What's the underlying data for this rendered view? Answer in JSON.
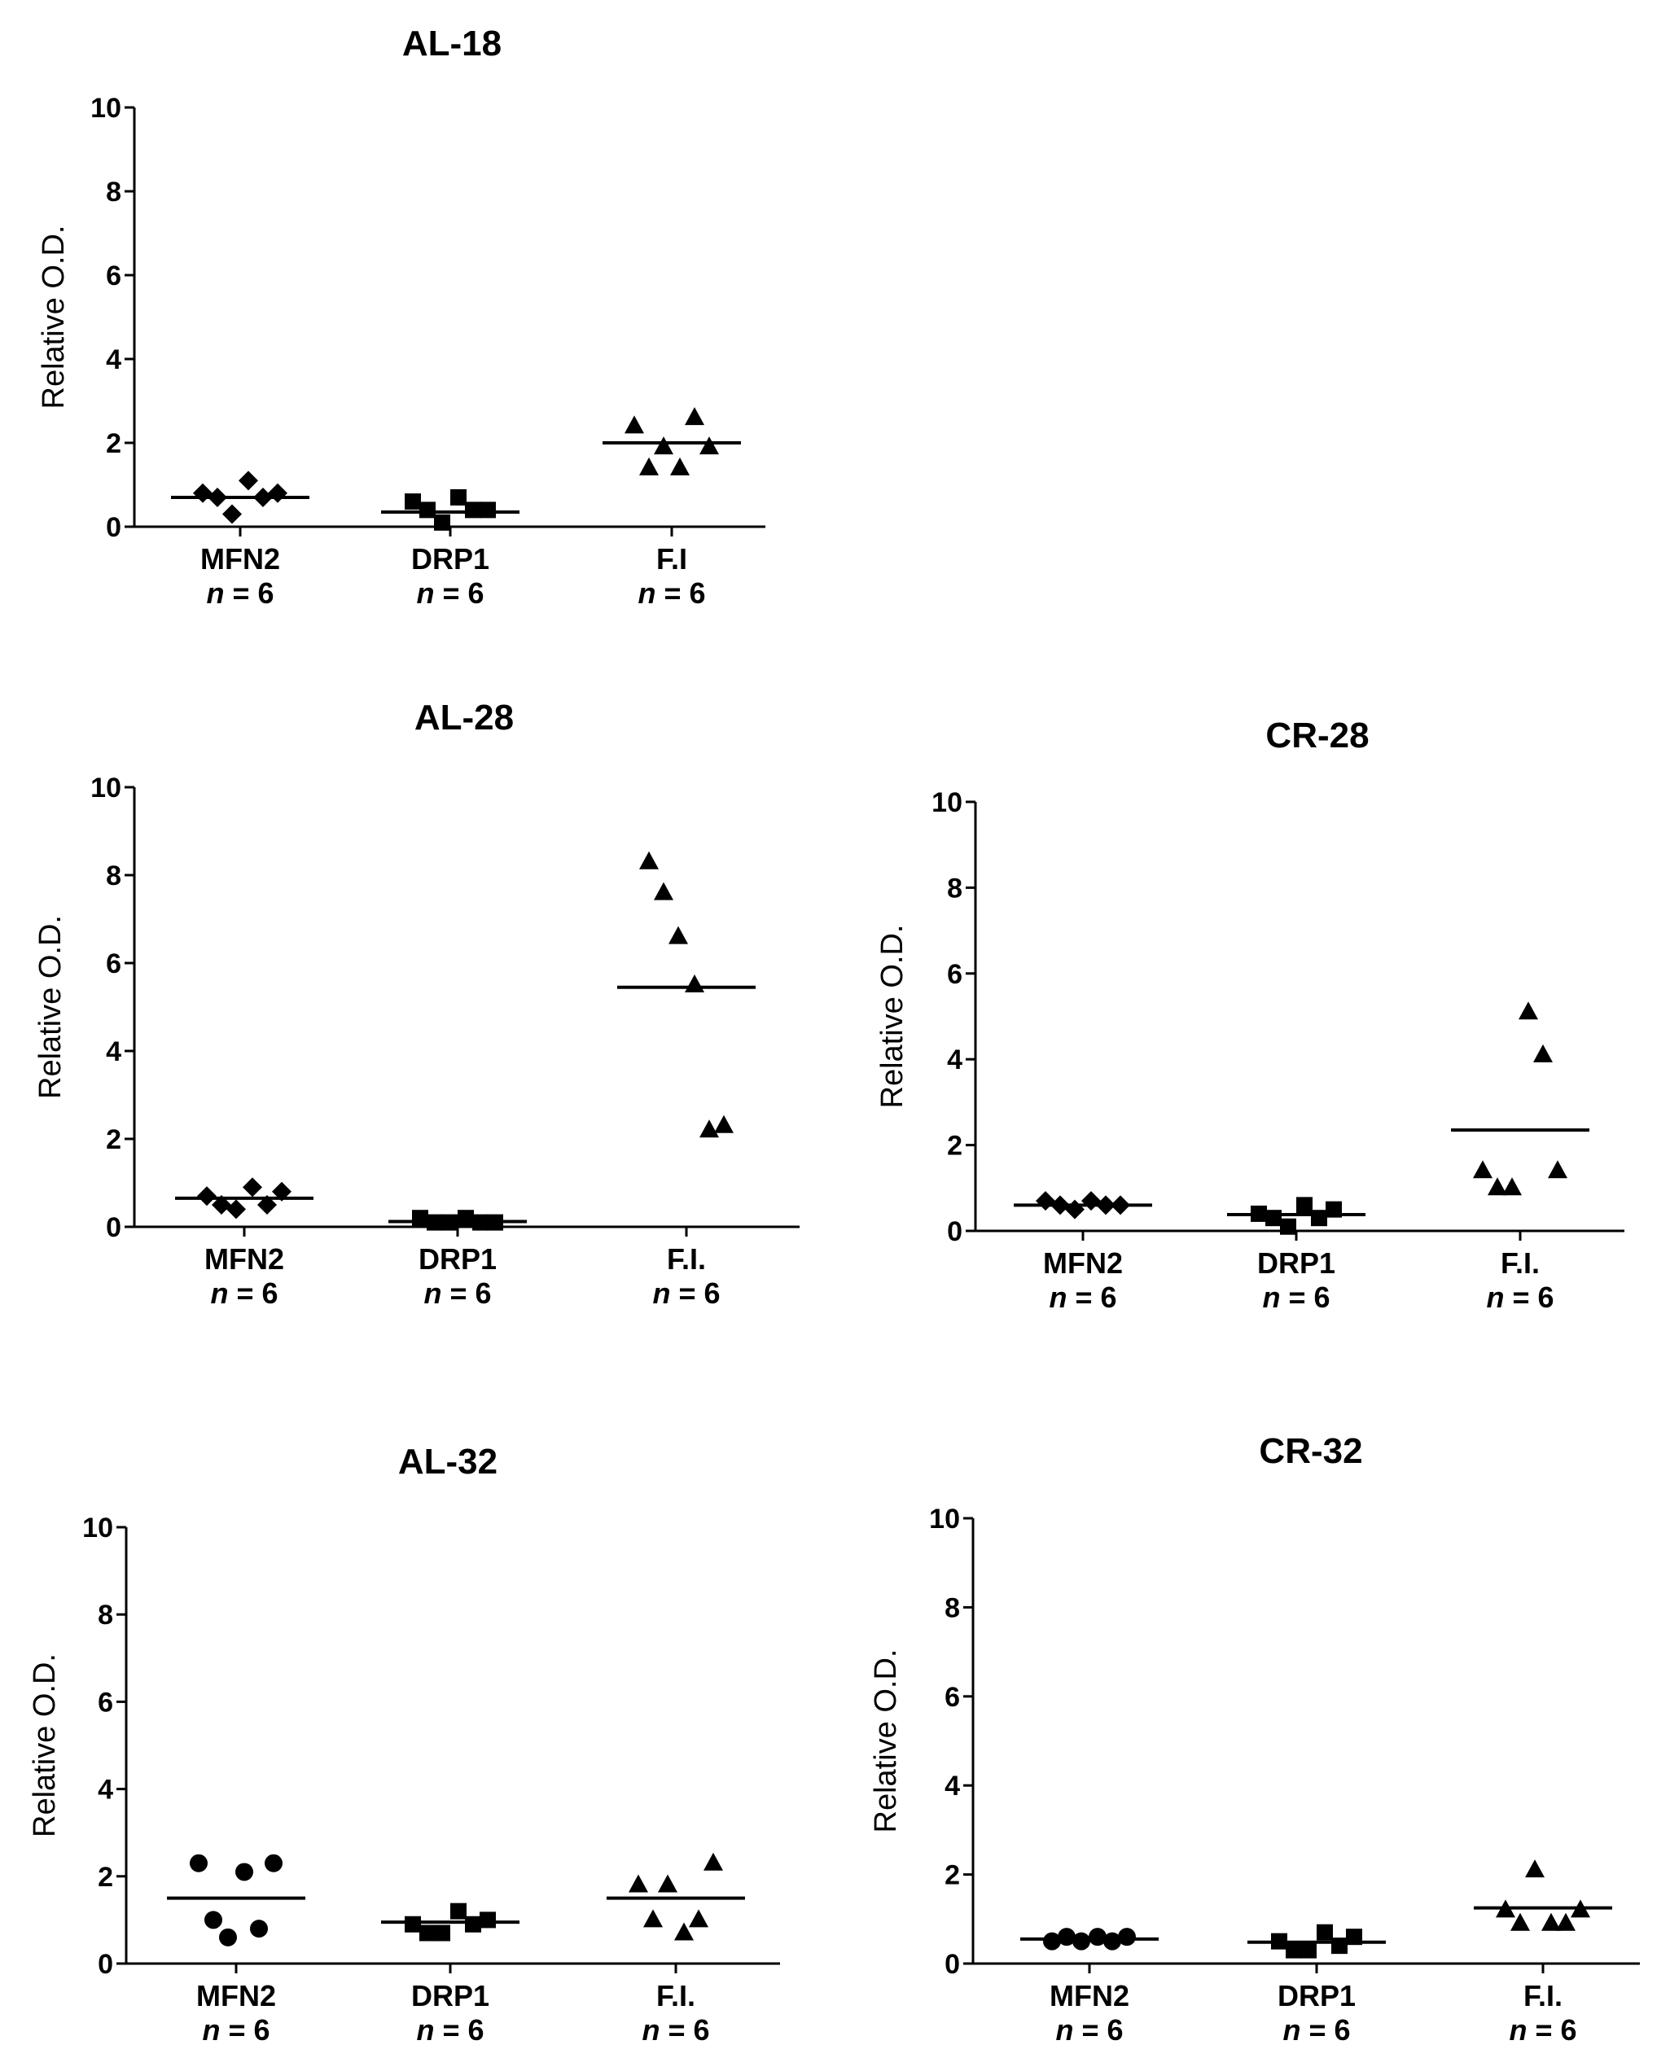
{
  "chart_data": [
    {
      "type": "scatter",
      "title": "AL-18",
      "ylabel": "Relative O.D.",
      "xlabel": "",
      "ylim": [
        0,
        10
      ],
      "yticks": [
        0,
        2,
        4,
        6,
        8,
        10
      ],
      "grid": false,
      "categories": [
        "MFN2",
        "DRP1",
        "F.I"
      ],
      "n_labels": [
        "6",
        "6",
        "6"
      ],
      "series": [
        {
          "name": "MFN2",
          "marker": "diamond",
          "values": [
            0.8,
            0.7,
            0.3,
            1.1,
            0.7,
            0.8
          ],
          "mean": 0.7
        },
        {
          "name": "DRP1",
          "marker": "square",
          "values": [
            0.6,
            0.4,
            0.1,
            0.7,
            0.4,
            0.4
          ],
          "mean": 0.35
        },
        {
          "name": "F.I",
          "marker": "triangle",
          "values": [
            2.4,
            1.4,
            1.9,
            1.4,
            2.6,
            1.9
          ],
          "mean": 2.0
        }
      ]
    },
    {
      "type": "scatter",
      "title": "AL-28",
      "ylabel": "Relative O.D.",
      "xlabel": "",
      "ylim": [
        0,
        10
      ],
      "yticks": [
        0,
        2,
        4,
        6,
        8,
        10
      ],
      "grid": false,
      "categories": [
        "MFN2",
        "DRP1",
        "F.I."
      ],
      "n_labels": [
        "6",
        "6",
        "6"
      ],
      "series": [
        {
          "name": "MFN2",
          "marker": "diamond",
          "values": [
            0.7,
            0.5,
            0.4,
            0.9,
            0.5,
            0.8
          ],
          "mean": 0.65
        },
        {
          "name": "DRP1",
          "marker": "square",
          "values": [
            0.2,
            0.1,
            0.1,
            0.2,
            0.1,
            0.1
          ],
          "mean": 0.12
        },
        {
          "name": "F.I.",
          "marker": "triangle",
          "values": [
            8.3,
            7.6,
            6.6,
            5.5,
            2.2,
            2.3
          ],
          "mean": 5.45
        }
      ]
    },
    {
      "type": "scatter",
      "title": "CR-28",
      "ylabel": "Relative O.D.",
      "xlabel": "",
      "ylim": [
        0,
        10
      ],
      "yticks": [
        0,
        2,
        4,
        6,
        8,
        10
      ],
      "grid": false,
      "categories": [
        "MFN2",
        "DRP1",
        "F.I."
      ],
      "n_labels": [
        "6",
        "6",
        "6"
      ],
      "series": [
        {
          "name": "MFN2",
          "marker": "diamond",
          "values": [
            0.7,
            0.6,
            0.5,
            0.7,
            0.6,
            0.6
          ],
          "mean": 0.6
        },
        {
          "name": "DRP1",
          "marker": "square",
          "values": [
            0.4,
            0.3,
            0.1,
            0.6,
            0.3,
            0.5
          ],
          "mean": 0.38
        },
        {
          "name": "F.I.",
          "marker": "triangle",
          "values": [
            1.4,
            1.0,
            1.0,
            5.1,
            4.1,
            1.4
          ],
          "mean": 2.35
        }
      ]
    },
    {
      "type": "scatter",
      "title": "AL-32",
      "ylabel": "Relative O.D.",
      "xlabel": "",
      "ylim": [
        0,
        10
      ],
      "yticks": [
        0,
        2,
        4,
        6,
        8,
        10
      ],
      "grid": false,
      "categories": [
        "MFN2",
        "DRP1",
        "F.I."
      ],
      "n_labels": [
        "6",
        "6",
        "6"
      ],
      "series": [
        {
          "name": "MFN2",
          "marker": "circle",
          "values": [
            2.3,
            1.0,
            0.6,
            2.1,
            0.8,
            2.3
          ],
          "mean": 1.5
        },
        {
          "name": "DRP1",
          "marker": "square",
          "values": [
            0.9,
            0.7,
            0.7,
            1.2,
            0.9,
            1.0
          ],
          "mean": 0.95
        },
        {
          "name": "F.I.",
          "marker": "triangle",
          "values": [
            1.8,
            1.0,
            1.8,
            0.7,
            1.0,
            2.3
          ],
          "mean": 1.5
        }
      ]
    },
    {
      "type": "scatter",
      "title": "CR-32",
      "ylabel": "Relative O.D.",
      "xlabel": "",
      "ylim": [
        0,
        10
      ],
      "yticks": [
        0,
        2,
        4,
        6,
        8,
        10
      ],
      "grid": false,
      "categories": [
        "MFN2",
        "DRP1",
        "F.I."
      ],
      "n_labels": [
        "6",
        "6",
        "6"
      ],
      "series": [
        {
          "name": "MFN2",
          "marker": "circle",
          "values": [
            0.5,
            0.6,
            0.5,
            0.6,
            0.5,
            0.6
          ],
          "mean": 0.55
        },
        {
          "name": "DRP1",
          "marker": "square",
          "values": [
            0.5,
            0.3,
            0.3,
            0.7,
            0.4,
            0.6
          ],
          "mean": 0.48
        },
        {
          "name": "F.I.",
          "marker": "triangle",
          "values": [
            1.2,
            0.9,
            2.1,
            0.9,
            0.9,
            1.2
          ],
          "mean": 1.25
        }
      ]
    }
  ]
}
